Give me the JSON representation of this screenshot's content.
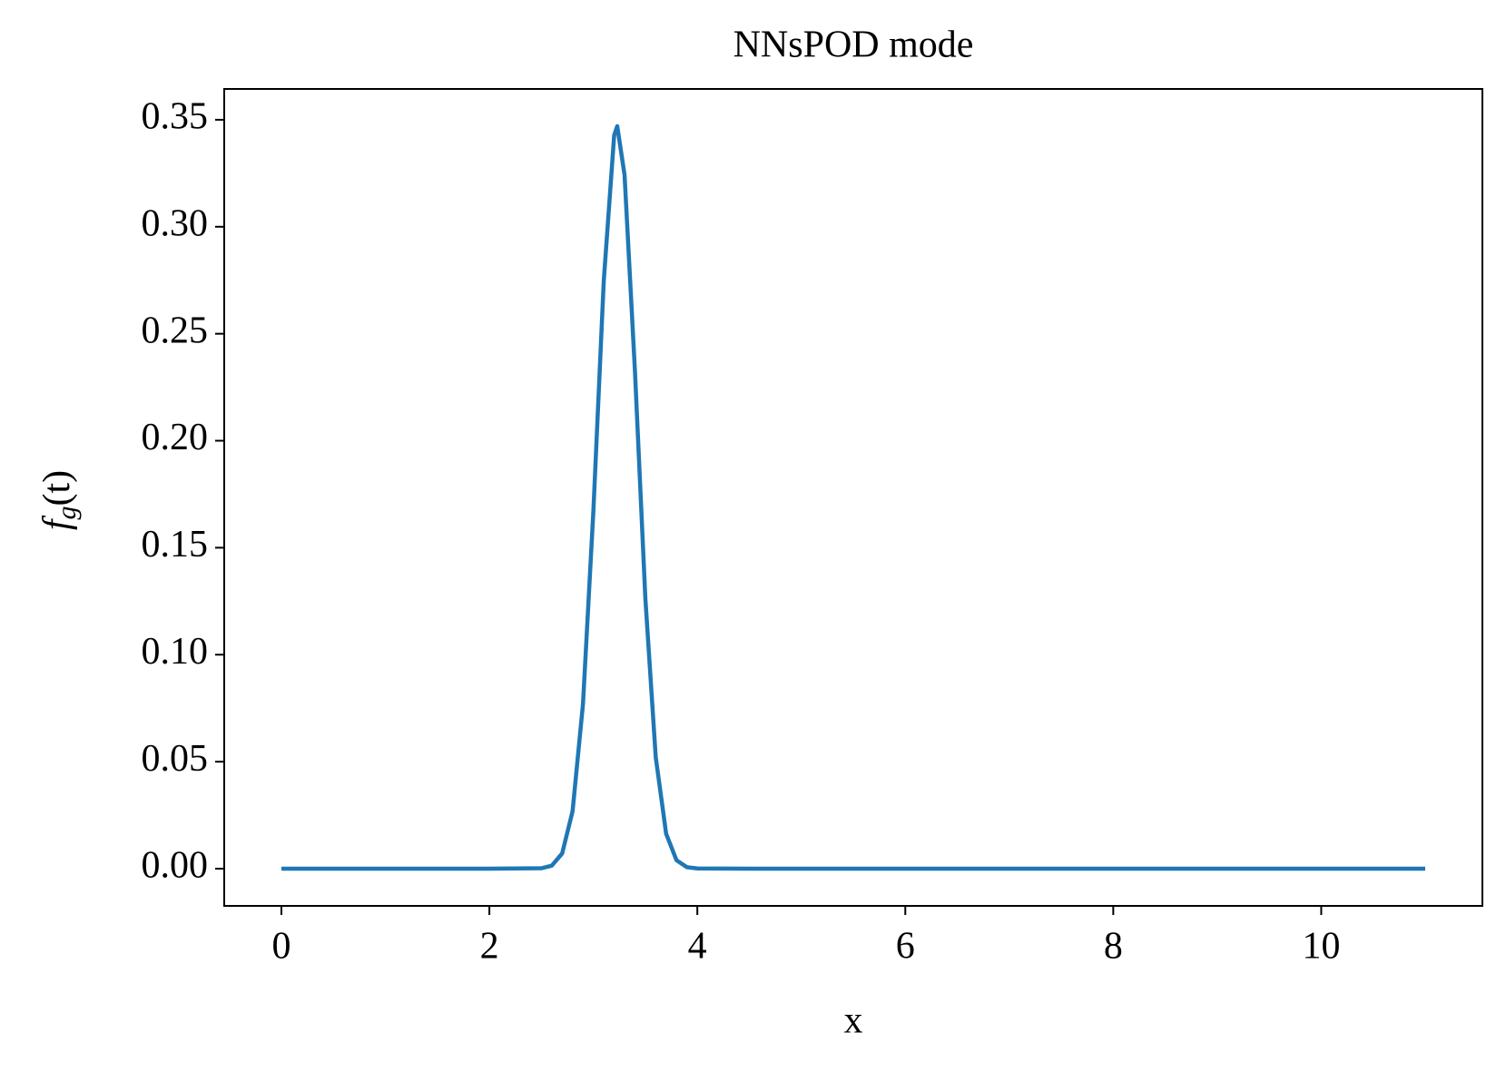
{
  "chart_data": {
    "type": "line",
    "title": "NNsPOD mode",
    "xlabel": "x",
    "ylabel_parts": [
      "f",
      "g",
      "(t)"
    ],
    "x": [
      0,
      2,
      2.5,
      2.6,
      2.7,
      2.8,
      2.9,
      3.0,
      3.1,
      3.2,
      3.23,
      3.3,
      3.4,
      3.5,
      3.6,
      3.7,
      3.8,
      3.9,
      4.0,
      4.5,
      11
    ],
    "series": [
      {
        "name": "NNsPOD mode",
        "color": "#1f77b4",
        "values": [
          0,
          0,
          0.0002,
          0.0014,
          0.0071,
          0.0268,
          0.0768,
          0.167,
          0.2746,
          0.3427,
          0.347,
          0.3242,
          0.2326,
          0.1264,
          0.0521,
          0.0163,
          0.0039,
          0.0007,
          0.0001,
          0,
          0
        ]
      }
    ],
    "xlim": [
      -0.55,
      11.55
    ],
    "ylim": [
      -0.0174,
      0.3644
    ],
    "xticks": [
      0,
      2,
      4,
      6,
      8,
      10
    ],
    "yticks": [
      {
        "value": 0,
        "label": "0.00"
      },
      {
        "value": 0.05,
        "label": "0.05"
      },
      {
        "value": 0.1,
        "label": "0.10"
      },
      {
        "value": 0.15,
        "label": "0.15"
      },
      {
        "value": 0.2,
        "label": "0.20"
      },
      {
        "value": 0.25,
        "label": "0.25"
      },
      {
        "value": 0.3,
        "label": "0.30"
      },
      {
        "value": 0.35,
        "label": "0.35"
      }
    ],
    "grid": false
  }
}
